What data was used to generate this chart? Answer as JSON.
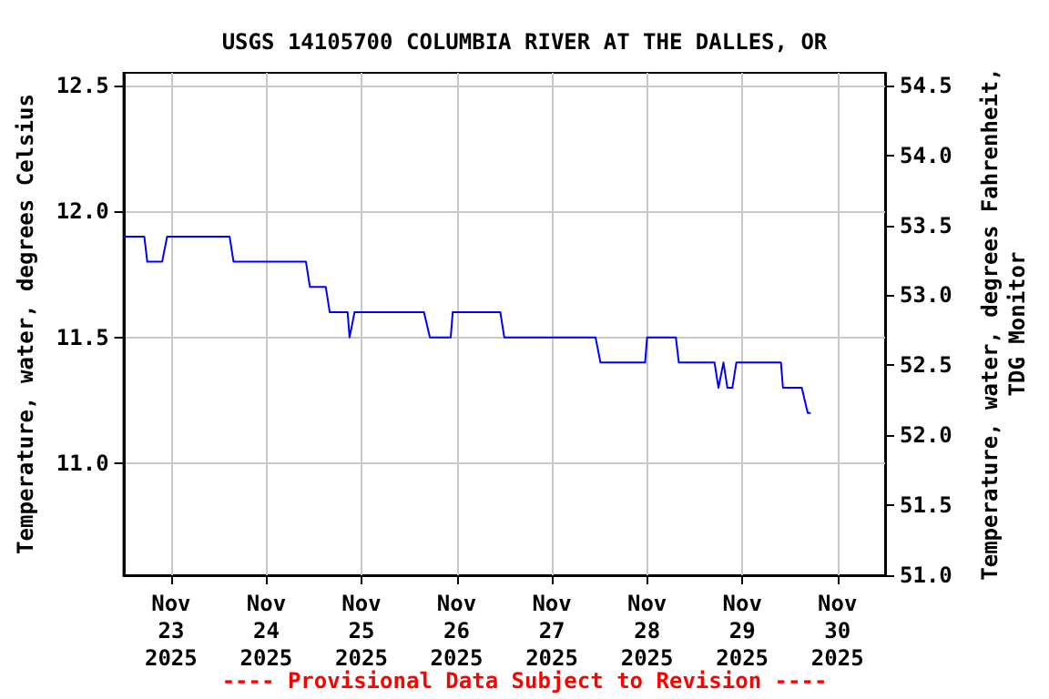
{
  "chart_data": {
    "type": "line",
    "title": "USGS 14105700 COLUMBIA RIVER AT THE DALLES, OR",
    "ylabel": "Temperature, water, degrees Celsius",
    "y2label": "Temperature, water, degrees Fahrenheit,\nTDG Monitor",
    "annotations": [
      "---- Provisional Data Subject to Revision ----"
    ],
    "x": [
      "2025-11-22T12:00",
      "2025-11-22T17:15",
      "2025-11-22T18:00",
      "2025-11-22T21:45",
      "2025-11-22T23:00",
      "2025-11-23T14:45",
      "2025-11-23T15:45",
      "2025-11-24T10:00",
      "2025-11-24T11:00",
      "2025-11-24T15:00",
      "2025-11-24T16:00",
      "2025-11-24T20:30",
      "2025-11-24T21:00",
      "2025-11-24T22:15",
      "2025-11-25T15:45",
      "2025-11-25T17:15",
      "2025-11-25T22:30",
      "2025-11-25T23:00",
      "2025-11-26T11:00",
      "2025-11-26T12:00",
      "2025-11-27T11:00",
      "2025-11-27T12:15",
      "2025-11-27T23:30",
      "2025-11-28T00:00",
      "2025-11-28T07:15",
      "2025-11-28T08:00",
      "2025-11-28T17:00",
      "2025-11-28T18:00",
      "2025-11-28T19:15",
      "2025-11-28T20:15",
      "2025-11-28T21:30",
      "2025-11-28T22:30",
      "2025-11-29T09:45",
      "2025-11-29T10:15",
      "2025-11-29T15:00",
      "2025-11-29T16:30",
      "2025-11-29T17:15"
    ],
    "series": [
      {
        "color": "#0000ff",
        "values": [
          11.9,
          11.9,
          11.8,
          11.8,
          11.9,
          11.9,
          11.8,
          11.8,
          11.7,
          11.7,
          11.6,
          11.6,
          11.5,
          11.6,
          11.6,
          11.5,
          11.5,
          11.6,
          11.6,
          11.5,
          11.5,
          11.4,
          11.4,
          11.5,
          11.5,
          11.4,
          11.4,
          11.3,
          11.4,
          11.3,
          11.3,
          11.4,
          11.4,
          11.3,
          11.3,
          11.2,
          11.2
        ]
      }
    ],
    "xlim": [
      "2025-11-22T12:00",
      "2025-11-30T12:00"
    ],
    "xticks": [
      {
        "value": "2025-11-23",
        "label": "Nov\n23\n2025"
      },
      {
        "value": "2025-11-24",
        "label": "Nov\n24\n2025"
      },
      {
        "value": "2025-11-25",
        "label": "Nov\n25\n2025"
      },
      {
        "value": "2025-11-26",
        "label": "Nov\n26\n2025"
      },
      {
        "value": "2025-11-27",
        "label": "Nov\n27\n2025"
      },
      {
        "value": "2025-11-28",
        "label": "Nov\n28\n2025"
      },
      {
        "value": "2025-11-29",
        "label": "Nov\n29\n2025"
      },
      {
        "value": "2025-11-30",
        "label": "Nov\n30\n2025"
      }
    ],
    "ylim": [
      10.556,
      12.55
    ],
    "yticks": [
      {
        "value": 11,
        "label": "11.0"
      },
      11.5,
      {
        "value": 12,
        "label": "12.0"
      },
      12.5
    ],
    "y2lim": [
      51.0,
      54.59
    ],
    "y2ticks": [
      {
        "value": 51,
        "label": "51.0"
      },
      51.5,
      {
        "value": 52,
        "label": "52.0"
      },
      52.5,
      {
        "value": 53,
        "label": "53.0"
      },
      53.5,
      {
        "value": 54,
        "label": "54.0"
      },
      54.5
    ],
    "grid": true,
    "marker": "none",
    "line_style": "solid"
  }
}
